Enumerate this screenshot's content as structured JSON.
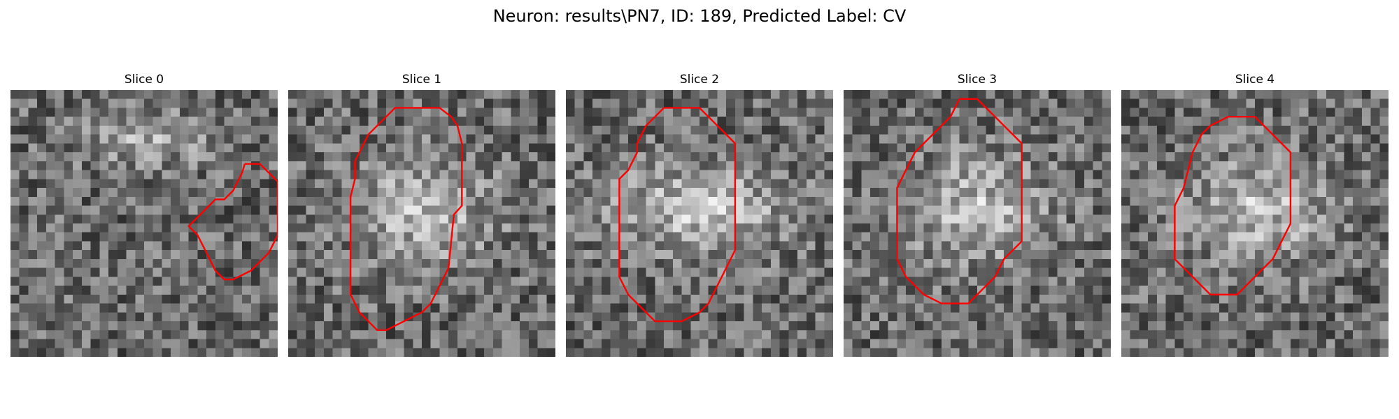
{
  "figure": {
    "title": "Neuron: results\\PN7, ID: 189, Predicted Label: CV"
  },
  "panels": [
    {
      "title": "Slice 0",
      "seed": 11,
      "bright": "small",
      "contour": [
        [
          26.3,
          8.3
        ],
        [
          28,
          8.3
        ],
        [
          29,
          9.3
        ],
        [
          30,
          10.3
        ],
        [
          30,
          16.3
        ],
        [
          29,
          18.3
        ],
        [
          28,
          19.3
        ],
        [
          27,
          20.3
        ],
        [
          25,
          21.3
        ],
        [
          24,
          21.3
        ],
        [
          23,
          20.3
        ],
        [
          22,
          18.3
        ],
        [
          21,
          16.3
        ],
        [
          20,
          15.3
        ],
        [
          21,
          14.3
        ],
        [
          22,
          13.3
        ],
        [
          23,
          12.3
        ],
        [
          24,
          12.3
        ],
        [
          25,
          11.3
        ],
        [
          25.5,
          10.3
        ],
        [
          26,
          9.3
        ],
        [
          26.3,
          8.3
        ]
      ]
    },
    {
      "title": "Slice 1",
      "seed": 23,
      "bright": "center",
      "contour": [
        [
          13,
          2
        ],
        [
          17,
          2
        ],
        [
          18.3,
          3
        ],
        [
          19,
          4
        ],
        [
          19.5,
          6
        ],
        [
          19.5,
          13
        ],
        [
          18.6,
          14
        ],
        [
          18,
          20
        ],
        [
          17,
          22
        ],
        [
          16,
          24
        ],
        [
          15,
          25
        ],
        [
          13,
          26
        ],
        [
          11,
          27
        ],
        [
          10,
          27
        ],
        [
          9,
          26
        ],
        [
          8,
          25
        ],
        [
          7,
          23
        ],
        [
          7,
          14
        ],
        [
          7,
          12
        ],
        [
          7.5,
          10
        ],
        [
          7.5,
          8
        ],
        [
          8,
          7
        ],
        [
          9,
          5
        ],
        [
          10,
          4
        ],
        [
          11,
          3
        ],
        [
          12,
          2
        ],
        [
          13,
          2
        ]
      ]
    },
    {
      "title": "Slice 2",
      "seed": 37,
      "bright": "wide",
      "contour": [
        [
          11,
          2
        ],
        [
          15,
          2
        ],
        [
          16,
          3
        ],
        [
          17,
          4
        ],
        [
          18,
          5
        ],
        [
          19,
          6
        ],
        [
          19,
          18
        ],
        [
          18,
          20
        ],
        [
          17.5,
          21
        ],
        [
          17,
          22
        ],
        [
          16,
          24
        ],
        [
          15,
          25
        ],
        [
          13,
          26
        ],
        [
          10,
          26
        ],
        [
          9,
          25
        ],
        [
          8,
          24
        ],
        [
          7,
          23
        ],
        [
          6,
          21
        ],
        [
          6,
          10
        ],
        [
          7,
          9
        ],
        [
          8,
          7
        ],
        [
          8,
          6
        ],
        [
          9,
          4
        ],
        [
          10,
          3
        ],
        [
          11,
          2
        ]
      ]
    },
    {
      "title": "Slice 3",
      "seed": 53,
      "bright": "center",
      "contour": [
        [
          13,
          1
        ],
        [
          15,
          1
        ],
        [
          16,
          2
        ],
        [
          17,
          3
        ],
        [
          18,
          4
        ],
        [
          19,
          5
        ],
        [
          20,
          6
        ],
        [
          20,
          17
        ],
        [
          19,
          18
        ],
        [
          18,
          19
        ],
        [
          17,
          21
        ],
        [
          15,
          23
        ],
        [
          14,
          24
        ],
        [
          12,
          24
        ],
        [
          11,
          24
        ],
        [
          9,
          23
        ],
        [
          8,
          22
        ],
        [
          7,
          21
        ],
        [
          6,
          19
        ],
        [
          6,
          11
        ],
        [
          7,
          9
        ],
        [
          8,
          7
        ],
        [
          9,
          6
        ],
        [
          10,
          5
        ],
        [
          11,
          4
        ],
        [
          12,
          3
        ],
        [
          13,
          1
        ]
      ]
    },
    {
      "title": "Slice 4",
      "seed": 71,
      "bright": "center",
      "contour": [
        [
          12,
          3
        ],
        [
          15,
          3
        ],
        [
          16,
          4
        ],
        [
          18,
          6
        ],
        [
          19,
          7
        ],
        [
          19,
          15
        ],
        [
          18,
          17
        ],
        [
          17,
          19
        ],
        [
          16,
          20
        ],
        [
          15,
          21
        ],
        [
          14,
          22
        ],
        [
          13,
          23
        ],
        [
          12,
          23
        ],
        [
          10,
          23
        ],
        [
          9,
          22
        ],
        [
          8,
          21
        ],
        [
          7,
          20
        ],
        [
          6,
          19
        ],
        [
          6,
          17
        ],
        [
          6,
          13
        ],
        [
          7,
          11
        ],
        [
          7.5,
          9
        ],
        [
          8,
          7
        ],
        [
          9,
          5
        ],
        [
          10,
          4
        ],
        [
          12,
          3
        ]
      ]
    }
  ],
  "colors": {
    "contour": "#ff0000"
  }
}
